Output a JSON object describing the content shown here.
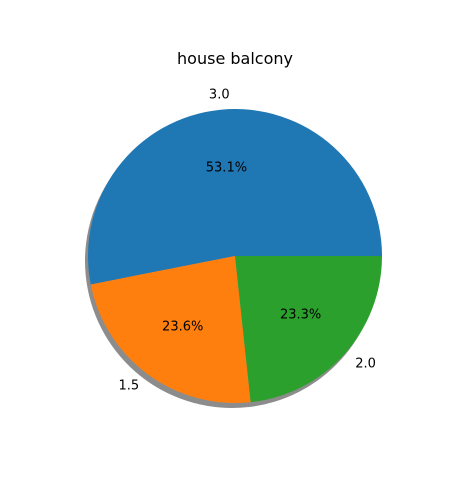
{
  "chart_data": {
    "type": "pie",
    "title": "house balcony",
    "categories": [
      "3.0",
      "1.5",
      "2.0"
    ],
    "values": [
      53.1,
      23.6,
      23.3
    ],
    "value_labels": [
      "53.1%",
      "23.6%",
      "23.3%"
    ],
    "colors": [
      "#1f77b4",
      "#ff7f0e",
      "#2ca02c"
    ],
    "shadow": true,
    "start_angle_deg": 0,
    "direction": "counterclockwise",
    "legend": "none"
  }
}
